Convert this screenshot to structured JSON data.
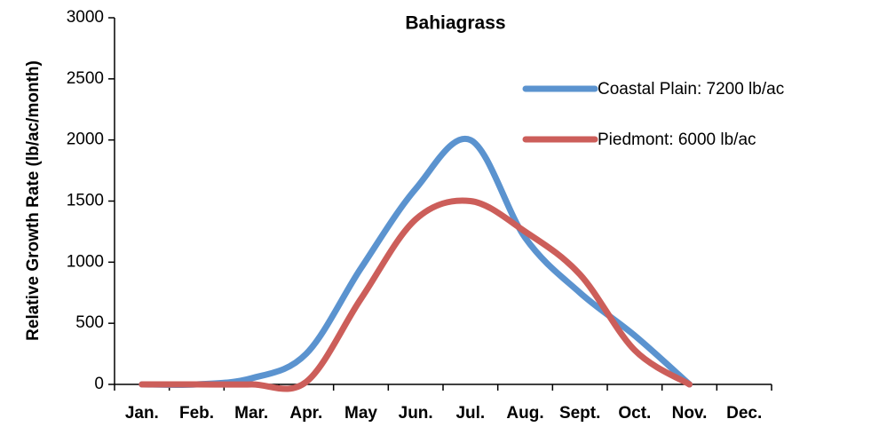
{
  "chart_data": {
    "type": "line",
    "title": "Bahiagrass",
    "y_label": "Relative Growth Rate (lb/ac/month)",
    "categories": [
      "Jan.",
      "Feb.",
      "Mar.",
      "Apr.",
      "May",
      "Jun.",
      "Jul.",
      "Aug.",
      "Sept.",
      "Oct.",
      "Nov.",
      "Dec."
    ],
    "series": [
      {
        "name": "Coastal Plain: 7200 lb/ac",
        "color": "#5b93cf",
        "values": [
          0,
          0,
          50,
          250,
          950,
          1600,
          2000,
          1200,
          750,
          400,
          0,
          null
        ]
      },
      {
        "name": "Piedmont: 6000 lb/ac",
        "color": "#cc5e5a",
        "values": [
          0,
          0,
          0,
          20,
          700,
          1350,
          1500,
          1250,
          900,
          280,
          0,
          null
        ]
      }
    ],
    "ylim": [
      0,
      3000
    ],
    "yticks": [
      0,
      500,
      1000,
      1500,
      2000,
      2500,
      3000
    ],
    "legend": "upper right"
  }
}
